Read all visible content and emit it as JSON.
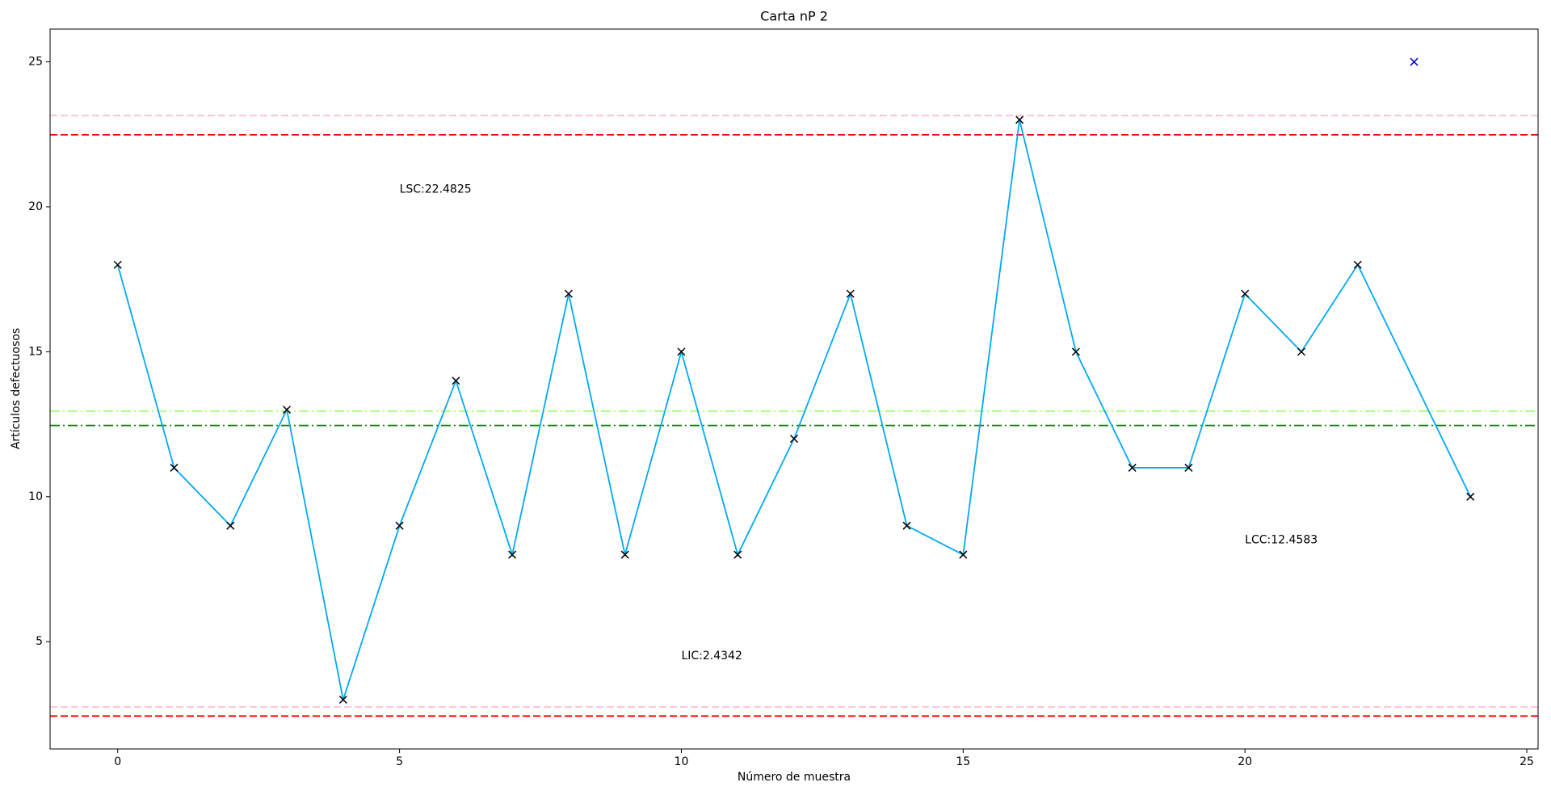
{
  "chart_data": {
    "type": "line",
    "title": "Carta nP 2",
    "x_label": "Número de muestra",
    "y_label": "Artículos defectuosos",
    "xlim": [
      -1.2,
      25.2
    ],
    "ylim": [
      1.3,
      26.13
    ],
    "xticks": [
      0,
      5,
      10,
      15,
      20,
      25
    ],
    "yticks": [
      5,
      10,
      15,
      20,
      25
    ],
    "series": [
      {
        "color": "#03a9f4",
        "marker_color": "#000000",
        "x": [
          0,
          1,
          2,
          3,
          4,
          5,
          6,
          7,
          8,
          9,
          10,
          11,
          12,
          13,
          14,
          15,
          16,
          17,
          18,
          19,
          20,
          21,
          22,
          24
        ],
        "values": [
          18,
          11,
          9,
          13,
          3,
          9,
          14,
          8,
          17,
          8,
          15,
          8,
          12,
          17,
          9,
          8,
          23,
          15,
          11,
          11,
          17,
          15,
          18,
          10
        ]
      },
      {
        "color": null,
        "marker_color": "#0000cc",
        "x": [
          23
        ],
        "values": [
          25
        ]
      }
    ],
    "reference_lines": [
      {
        "value": 23.15,
        "color": "#ffc0cb",
        "style": "dashed"
      },
      {
        "value": 22.4825,
        "color": "#ff0000",
        "style": "dashed"
      },
      {
        "value": 12.95,
        "color": "#a6ff73",
        "style": "dashdot"
      },
      {
        "value": 12.4583,
        "color": "#008000",
        "style": "dashdot"
      },
      {
        "value": 2.75,
        "color": "#ffc0cb",
        "style": "dashed"
      },
      {
        "value": 2.4342,
        "color": "#ff0000",
        "style": "dashed"
      }
    ],
    "annotations": [
      "LSC:22.4825",
      "LIC:2.4342",
      "LCC:12.4583"
    ]
  }
}
